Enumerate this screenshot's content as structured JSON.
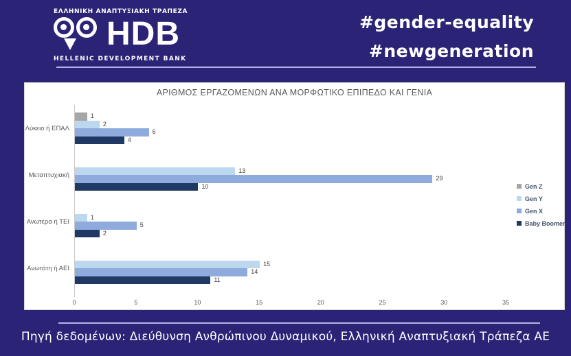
{
  "header": {
    "logo": {
      "icon": "owl-icon",
      "top_text": "ΕΛΛΗΝΙΚΗ ΑΝΑΠΤΥΞΙΑΚΗ ΤΡΑΠΕΖΑ",
      "acronym": "HDB",
      "bottom_text": "HELLENIC DEVELOPMENT BANK"
    },
    "hashtags": [
      "#gender-equality",
      "#newgeneration"
    ]
  },
  "footer": {
    "source": "Πηγή δεδομένων: Διεύθυνση Ανθρώπινου Δυναμικού, Ελληνική Αναπτυξιακή Τράπεζα ΑΕ"
  },
  "colors": {
    "background": "#2b2476",
    "card": "#ffffff",
    "separator_line": "#b2b5e3",
    "chart_text": "#595959",
    "data_label": "#404040",
    "legend_text": "#44546a"
  },
  "chart_data": {
    "type": "bar",
    "orientation": "horizontal",
    "title": "ΑΡΙΘΜΟΣ ΕΡΓΑΖΟΜΕΝΩΝ ΑΝΑ ΜΟΡΦΩΤΙΚΟ ΕΠΙΠΕΔΟ ΚΑΙ ΓΕΝΙΑ",
    "categories": [
      "Λύκειο ή ΕΠΑΛ",
      "Μεταπτυχιακή",
      "Ανωτέρα ή ΤΕΙ",
      "Ανωτάτη ή ΑΕΙ"
    ],
    "series": [
      {
        "name": "Gen Z",
        "color": "#a6a6a6",
        "values": [
          1,
          0,
          0,
          0
        ]
      },
      {
        "name": "Gen Y",
        "color": "#bdd7ee",
        "values": [
          2,
          13,
          1,
          15
        ]
      },
      {
        "name": "Gen X",
        "color": "#8faadc",
        "values": [
          6,
          29,
          5,
          14
        ]
      },
      {
        "name": "Baby Boomer",
        "color": "#1f3864",
        "values": [
          4,
          10,
          2,
          11
        ]
      }
    ],
    "x_ticks": [
      0,
      5,
      10,
      15,
      20,
      25,
      30,
      35
    ],
    "xlim": [
      0,
      35
    ],
    "grid": false,
    "legend_position": "right",
    "data_labels": true
  }
}
